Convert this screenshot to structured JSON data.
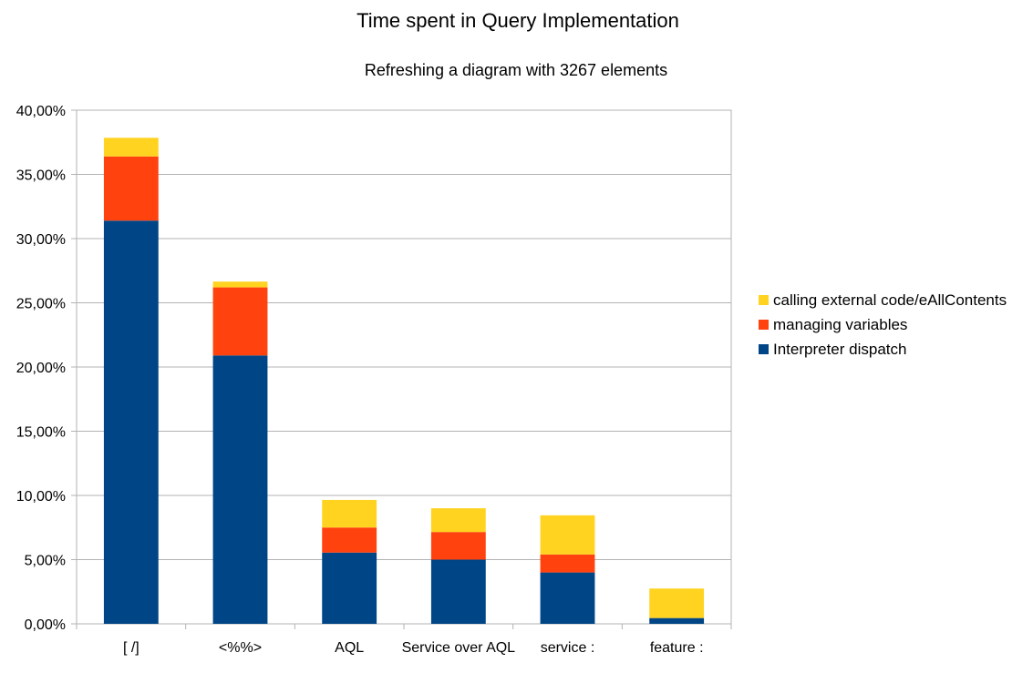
{
  "chart_data": {
    "type": "bar",
    "stacked": true,
    "title": "Time spent in Query Implementation",
    "subtitle": "Refreshing a diagram with 3267 elements",
    "xlabel": "",
    "ylabel": "",
    "categories": [
      "[ /]",
      "<%%>",
      "AQL",
      "Service over AQL",
      "service :",
      "feature :"
    ],
    "series": [
      {
        "name": "Interpreter dispatch",
        "color": "#004586",
        "values": [
          31.4,
          20.9,
          5.55,
          5.0,
          4.0,
          0.45
        ]
      },
      {
        "name": "managing variables",
        "color": "#ff420e",
        "values": [
          5.0,
          5.3,
          1.95,
          2.15,
          1.4,
          0.0
        ]
      },
      {
        "name": "calling external code/eAllContents",
        "color": "#ffd320",
        "values": [
          1.45,
          0.45,
          2.15,
          1.85,
          3.05,
          2.3
        ]
      }
    ],
    "ylim": [
      0,
      40
    ],
    "ytick_step": 5,
    "yticks": [
      "0,00%",
      "5,00%",
      "10,00%",
      "15,00%",
      "20,00%",
      "25,00%",
      "30,00%",
      "35,00%",
      "40,00%"
    ],
    "grid": true,
    "legend_position": "right",
    "legend_order": [
      "calling external code/eAllContents",
      "managing variables",
      "Interpreter dispatch"
    ]
  }
}
